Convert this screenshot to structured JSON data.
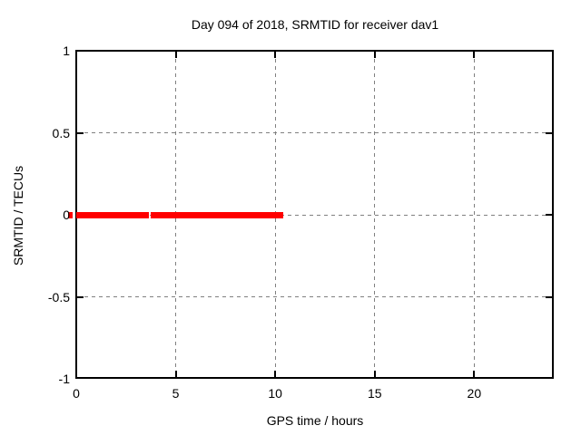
{
  "chart_data": {
    "type": "line",
    "title": "Day 094 of 2018, SRMTID for receiver dav1",
    "xlabel": "GPS time / hours",
    "ylabel": "SRMTID / TECUs",
    "xlim": [
      0,
      24
    ],
    "ylim": [
      -1,
      1
    ],
    "xticks": {
      "values": [
        0,
        5,
        10,
        15,
        20
      ],
      "labels": [
        "0",
        "5",
        "10",
        "15",
        "20"
      ]
    },
    "yticks": {
      "values": [
        -1,
        -0.5,
        0,
        0.5,
        1
      ],
      "labels": [
        "-1",
        "-0.5",
        "0",
        "0.5",
        "1"
      ]
    },
    "grid": {
      "visible": true,
      "style": "dashed",
      "x_values": [
        5,
        10,
        15,
        20
      ],
      "y_values": [
        -0.5,
        0,
        0.5
      ]
    },
    "legend": "none",
    "series": [
      {
        "name": "SRMTID",
        "color": "#ff0000",
        "style": "thick solid horizontal segments at y=0",
        "segments": [
          {
            "x_start": -0.41,
            "x_end": -0.18,
            "y": 0
          },
          {
            "x_start": 0.0,
            "x_end": 3.65,
            "y": 0
          },
          {
            "x_start": 3.75,
            "x_end": 10.4,
            "y": 0
          }
        ]
      }
    ],
    "colors": {
      "line": "#ff0000",
      "grid": "#808080",
      "border": "#000000",
      "background": "#ffffff",
      "text": "#000000"
    }
  }
}
